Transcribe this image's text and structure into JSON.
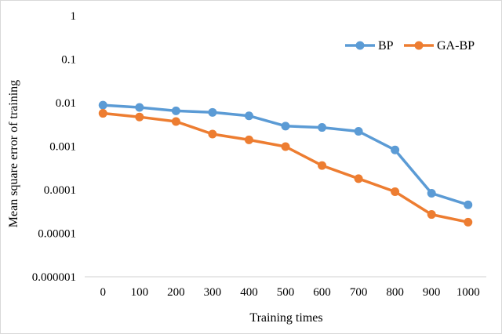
{
  "chart_data": {
    "type": "line",
    "title": "",
    "xlabel": "Training times",
    "ylabel": "Mean square error of training",
    "yscale": "log",
    "ylim": [
      1e-06,
      1
    ],
    "categories": [
      "0",
      "100",
      "200",
      "300",
      "400",
      "500",
      "600",
      "700",
      "800",
      "900",
      "1000"
    ],
    "y_ticks": [
      {
        "value": 1,
        "label": "1"
      },
      {
        "value": 0.1,
        "label": "0.1"
      },
      {
        "value": 0.01,
        "label": "0.01"
      },
      {
        "value": 0.001,
        "label": "0.001"
      },
      {
        "value": 0.0001,
        "label": "0.0001"
      },
      {
        "value": 1e-05,
        "label": "0.00001"
      },
      {
        "value": 1e-06,
        "label": "0.000001"
      }
    ],
    "legend_position": "top-right",
    "grid": false,
    "series": [
      {
        "name": "BP",
        "color": "#5b9bd5",
        "values": [
          0.0088,
          0.0078,
          0.0065,
          0.006,
          0.005,
          0.0029,
          0.0027,
          0.0022,
          0.00082,
          8.3e-05,
          4.5e-05
        ]
      },
      {
        "name": "GA-BP",
        "color": "#ed7d31",
        "values": [
          0.0057,
          0.0047,
          0.0037,
          0.0019,
          0.0014,
          0.00098,
          0.00036,
          0.00018,
          9e-05,
          2.7e-05,
          1.8e-05
        ]
      }
    ]
  }
}
